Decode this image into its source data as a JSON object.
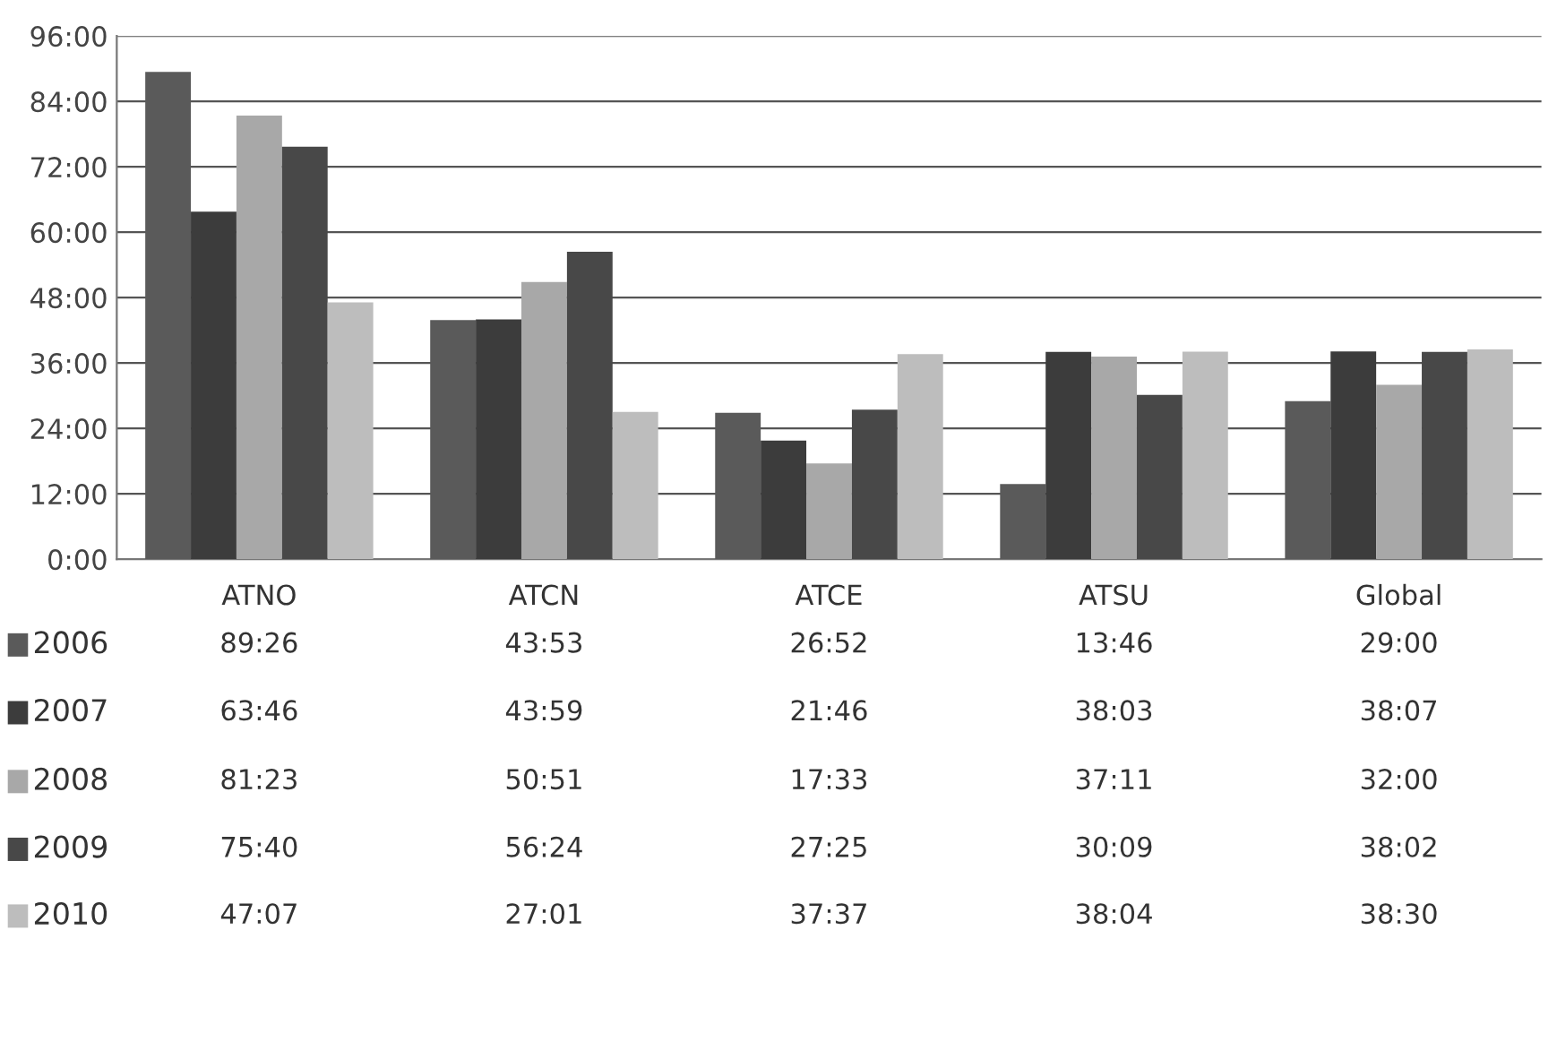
{
  "chart_data": {
    "type": "bar",
    "categories": [
      "ATNO",
      "ATCN",
      "ATCE",
      "ATSU",
      "Global"
    ],
    "series": [
      {
        "name": "2006",
        "color": "#5a5a5a",
        "values": [
          89.4333,
          43.8833,
          26.8667,
          13.7667,
          29
        ],
        "value_labels": [
          "89:26",
          "43:53",
          "26:52",
          "13:46",
          "29:00"
        ]
      },
      {
        "name": "2007",
        "color": "#3c3c3c",
        "values": [
          63.7667,
          43.9833,
          21.7667,
          38.05,
          38.1167
        ],
        "value_labels": [
          "63:46",
          "43:59",
          "21:46",
          "38:03",
          "38:07"
        ]
      },
      {
        "name": "2008",
        "color": "#a8a8a8",
        "values": [
          81.3833,
          50.85,
          17.55,
          37.1833,
          32
        ],
        "value_labels": [
          "81:23",
          "50:51",
          "17:33",
          "37:11",
          "32:00"
        ]
      },
      {
        "name": "2009",
        "color": "#484848",
        "values": [
          75.6667,
          56.4,
          27.4167,
          30.15,
          38.0333
        ],
        "value_labels": [
          "75:40",
          "56:24",
          "27:25",
          "30:09",
          "38:02"
        ]
      },
      {
        "name": "2010",
        "color": "#bdbdbd",
        "values": [
          47.1167,
          27.0167,
          37.6167,
          38.0667,
          38.5
        ],
        "value_labels": [
          "47:07",
          "27:01",
          "37:37",
          "38:04",
          "38:30"
        ]
      }
    ],
    "ylim": [
      0,
      96
    ],
    "yticks": [
      {
        "value": 0,
        "label": "0:00"
      },
      {
        "value": 12,
        "label": "12:00"
      },
      {
        "value": 24,
        "label": "24:00"
      },
      {
        "value": 36,
        "label": "36:00"
      },
      {
        "value": 48,
        "label": "48:00"
      },
      {
        "value": 60,
        "label": "60:00"
      },
      {
        "value": 72,
        "label": "72:00"
      },
      {
        "value": 84,
        "label": "84:00"
      },
      {
        "value": 96,
        "label": "96:00"
      }
    ],
    "grid": "y",
    "legend": "bottom left"
  }
}
